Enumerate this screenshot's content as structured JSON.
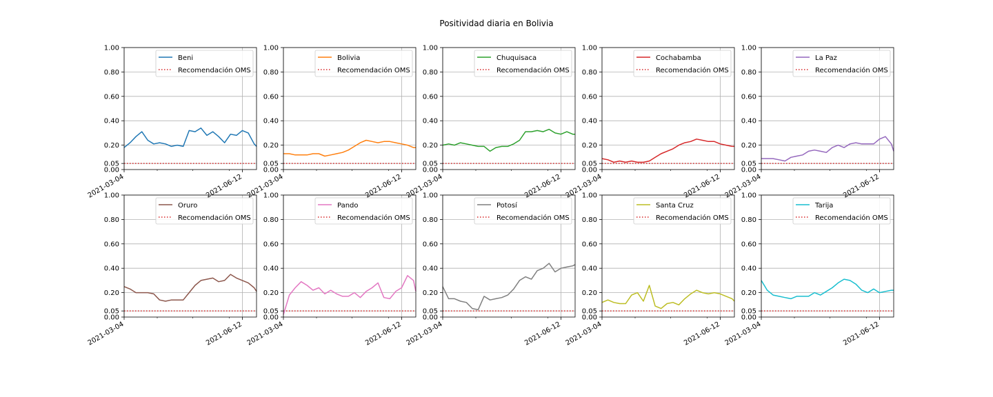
{
  "figure": {
    "title": "Positividad diaria en Bolivia"
  },
  "chart_data": {
    "type": "line",
    "title": "Positividad diaria en Bolivia",
    "layout": "2x5 small multiples",
    "shared_axes": {
      "xlim": [
        "2021-03-04",
        "2021-06-24"
      ],
      "x_ticks": [
        "2021-03-04",
        "2021-06-12"
      ],
      "ylim": [
        0,
        1
      ],
      "y_ticks": [
        0.0,
        0.05,
        0.2,
        0.4,
        0.6,
        0.8,
        1.0
      ],
      "y_tick_labels": [
        "0.00",
        "0.05",
        "0.20",
        "0.40",
        "0.60",
        "0.80",
        "1.00"
      ],
      "grid": true,
      "legend_position": "top-right"
    },
    "reference_line": {
      "name": "Recomendación OMS",
      "value": 0.05,
      "color": "#d62728",
      "style": "dotted"
    },
    "x_resolution": "5-day sampling from 2021-03-04",
    "x": [
      "2021-03-04",
      "2021-03-09",
      "2021-03-14",
      "2021-03-19",
      "2021-03-24",
      "2021-03-29",
      "2021-04-03",
      "2021-04-08",
      "2021-04-13",
      "2021-04-18",
      "2021-04-23",
      "2021-04-28",
      "2021-05-03",
      "2021-05-08",
      "2021-05-13",
      "2021-05-18",
      "2021-05-23",
      "2021-05-28",
      "2021-06-02",
      "2021-06-07",
      "2021-06-12",
      "2021-06-17",
      "2021-06-22",
      "2021-06-24"
    ],
    "series": [
      {
        "name": "Beni",
        "color": "#1f77b4",
        "values": [
          0.18,
          0.22,
          0.27,
          0.31,
          0.24,
          0.21,
          0.22,
          0.21,
          0.19,
          0.2,
          0.19,
          0.32,
          0.31,
          0.34,
          0.28,
          0.31,
          0.27,
          0.22,
          0.29,
          0.28,
          0.32,
          0.3,
          0.21,
          0.19
        ]
      },
      {
        "name": "Bolivia",
        "color": "#ff7f0e",
        "values": [
          0.13,
          0.13,
          0.12,
          0.12,
          0.12,
          0.13,
          0.13,
          0.11,
          0.12,
          0.13,
          0.14,
          0.16,
          0.19,
          0.22,
          0.24,
          0.23,
          0.22,
          0.23,
          0.23,
          0.22,
          0.21,
          0.2,
          0.18,
          0.18
        ]
      },
      {
        "name": "Chuquisaca",
        "color": "#2ca02c",
        "values": [
          0.2,
          0.21,
          0.2,
          0.22,
          0.21,
          0.2,
          0.19,
          0.19,
          0.15,
          0.18,
          0.19,
          0.19,
          0.21,
          0.24,
          0.31,
          0.31,
          0.32,
          0.31,
          0.33,
          0.3,
          0.29,
          0.31,
          0.29,
          0.29
        ]
      },
      {
        "name": "Cochabamba",
        "color": "#d62728",
        "values": [
          0.09,
          0.08,
          0.06,
          0.07,
          0.06,
          0.07,
          0.06,
          0.06,
          0.07,
          0.1,
          0.13,
          0.15,
          0.17,
          0.2,
          0.22,
          0.23,
          0.25,
          0.24,
          0.23,
          0.23,
          0.21,
          0.2,
          0.19,
          0.19
        ]
      },
      {
        "name": "La Paz",
        "color": "#9467bd",
        "values": [
          0.09,
          0.09,
          0.09,
          0.08,
          0.07,
          0.1,
          0.11,
          0.12,
          0.15,
          0.16,
          0.15,
          0.14,
          0.18,
          0.2,
          0.18,
          0.21,
          0.22,
          0.21,
          0.21,
          0.21,
          0.25,
          0.27,
          0.21,
          0.15
        ]
      },
      {
        "name": "Oruro",
        "color": "#8c564b",
        "values": [
          0.25,
          0.23,
          0.2,
          0.2,
          0.2,
          0.19,
          0.14,
          0.13,
          0.14,
          0.14,
          0.14,
          0.2,
          0.26,
          0.3,
          0.31,
          0.32,
          0.29,
          0.3,
          0.35,
          0.32,
          0.3,
          0.28,
          0.24,
          0.21
        ]
      },
      {
        "name": "Pando",
        "color": "#e377c2",
        "values": [
          0.02,
          0.18,
          0.24,
          0.29,
          0.26,
          0.22,
          0.24,
          0.19,
          0.22,
          0.19,
          0.17,
          0.17,
          0.2,
          0.16,
          0.21,
          0.24,
          0.28,
          0.16,
          0.15,
          0.21,
          0.24,
          0.34,
          0.3,
          0.21
        ]
      },
      {
        "name": "Potosí",
        "color": "#7f7f7f",
        "values": [
          0.25,
          0.15,
          0.15,
          0.13,
          0.12,
          0.07,
          0.06,
          0.17,
          0.14,
          0.15,
          0.16,
          0.18,
          0.23,
          0.3,
          0.33,
          0.31,
          0.38,
          0.4,
          0.44,
          0.37,
          0.4,
          0.41,
          0.42,
          0.43
        ]
      },
      {
        "name": "Santa Cruz",
        "color": "#bcbd22",
        "values": [
          0.12,
          0.14,
          0.12,
          0.11,
          0.11,
          0.18,
          0.2,
          0.13,
          0.26,
          0.09,
          0.07,
          0.11,
          0.12,
          0.1,
          0.15,
          0.19,
          0.22,
          0.2,
          0.19,
          0.2,
          0.19,
          0.17,
          0.15,
          0.13
        ]
      },
      {
        "name": "Tarija",
        "color": "#17becf",
        "values": [
          0.3,
          0.22,
          0.18,
          0.17,
          0.16,
          0.15,
          0.17,
          0.17,
          0.17,
          0.2,
          0.18,
          0.21,
          0.24,
          0.28,
          0.31,
          0.3,
          0.27,
          0.22,
          0.2,
          0.23,
          0.2,
          0.21,
          0.22,
          0.22
        ]
      }
    ]
  }
}
